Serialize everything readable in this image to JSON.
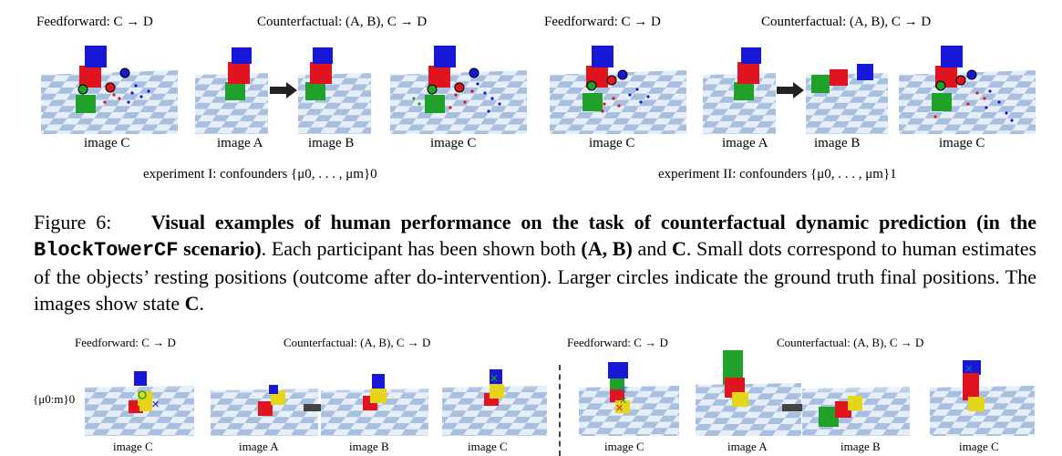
{
  "top": {
    "exp1": {
      "feedforward_header": "Feedforward: C → D",
      "counterfactual_header": "Counterfactual: (A, B), C → D",
      "labels": [
        "image C",
        "image A",
        "image B",
        "image C"
      ],
      "caption": "experiment I: confounders {μ0, . . . , μm}0"
    },
    "exp2": {
      "feedforward_header": "Feedforward: C → D",
      "counterfactual_header": "Counterfactual: (A, B), C → D",
      "labels": [
        "image C",
        "image A",
        "image B",
        "image C"
      ],
      "caption": "experiment II: confounders {μ0, . . . , μm}1"
    }
  },
  "figure_caption": {
    "number": "Figure 6:",
    "bold_part1": "Visual examples of human performance on the task of counterfactual dynamic prediction (in the",
    "scenario": "BlockTowerCF",
    "bold_part2": "scenario)",
    "rest1": ". Each participant has been shown both",
    "ab": "(A, B)",
    "rest2": "and",
    "c": "C",
    "rest3": ". Small dots correspond to human estimates of the objects’ resting positions (outcome after do-intervention). Larger circles indicate the ground truth final positions. The images show state",
    "c2": "C",
    "end": "."
  },
  "bottom": {
    "left": {
      "feedforward_header": "Feedforward: C → D",
      "counterfactual_header": "Counterfactual: (A, B), C → D",
      "row_label": "{μ0:m}0",
      "labels": [
        "image C",
        "image A",
        "image B",
        "image C"
      ]
    },
    "right": {
      "feedforward_header": "Feedforward: C → D",
      "counterfactual_header": "Counterfactual: (A, B), C → D",
      "labels": [
        "image C",
        "image A",
        "image B",
        "image C"
      ]
    }
  },
  "colors": {
    "red": "#e0141e",
    "green": "#1fa12a",
    "blue": "#1717d8",
    "yellow": "#e6d61a",
    "arrow": "#333333",
    "checker_light": "#e6eef8",
    "checker_dark": "#a8bfe0"
  }
}
